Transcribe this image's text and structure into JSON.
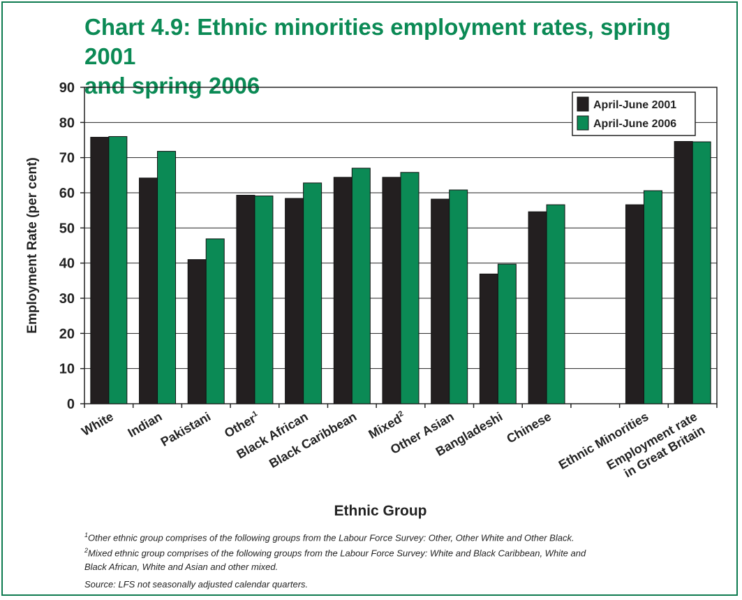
{
  "title_line1": "Chart 4.9: Ethnic minorities employment rates, spring 2001",
  "title_line2": "and spring 2006",
  "colors": {
    "title": "#0b8a55",
    "series_2001": "#231f20",
    "series_2006": "#0b8a55",
    "frame": "#0d7a4f"
  },
  "notes": {
    "footnote1_mark": "1",
    "footnote1": "Other ethnic group comprises of the following groups from the Labour Force Survey: Other, Other White and Other Black.",
    "footnote2_mark": "2",
    "footnote2_line1": "Mixed ethnic group comprises of the following groups from the Labour Force Survey: White and Black Caribbean, White and",
    "footnote2_line2": "Black African, White and Asian and other mixed.",
    "source": "Source: LFS not seasonally adjusted calendar quarters."
  },
  "chart_data": {
    "type": "bar",
    "ylabel": "Employment Rate (per cent)",
    "xlabel": "Ethnic Group",
    "ylim": [
      0,
      90
    ],
    "yticks": [
      0,
      10,
      20,
      30,
      40,
      50,
      60,
      70,
      80,
      90
    ],
    "grid": "horizontal",
    "legend_position": "top-right",
    "categories": [
      {
        "label": "White",
        "sup": ""
      },
      {
        "label": "Indian",
        "sup": ""
      },
      {
        "label": "Pakistani",
        "sup": ""
      },
      {
        "label": "Other",
        "sup": "1"
      },
      {
        "label": "Black African",
        "sup": ""
      },
      {
        "label": "Black Caribbean",
        "sup": ""
      },
      {
        "label": "Mixed",
        "sup": "2"
      },
      {
        "label": "Other Asian",
        "sup": ""
      },
      {
        "label": "Bangladeshi",
        "sup": ""
      },
      {
        "label": "Chinese",
        "sup": ""
      },
      {
        "label": "",
        "sup": ""
      },
      {
        "label": "Ethnic Minorities",
        "sup": ""
      },
      {
        "label": "Employment rate\nin Great Britain",
        "sup": ""
      }
    ],
    "series": [
      {
        "name": "April-June 2001",
        "values": [
          75.8,
          64.2,
          41.0,
          59.3,
          58.4,
          64.4,
          64.4,
          58.2,
          36.9,
          54.6,
          null,
          56.6,
          74.6
        ]
      },
      {
        "name": "April-June 2006",
        "values": [
          76.0,
          71.8,
          46.9,
          59.1,
          62.8,
          67.0,
          65.8,
          60.8,
          39.7,
          56.6,
          null,
          60.6,
          74.5
        ]
      }
    ]
  }
}
